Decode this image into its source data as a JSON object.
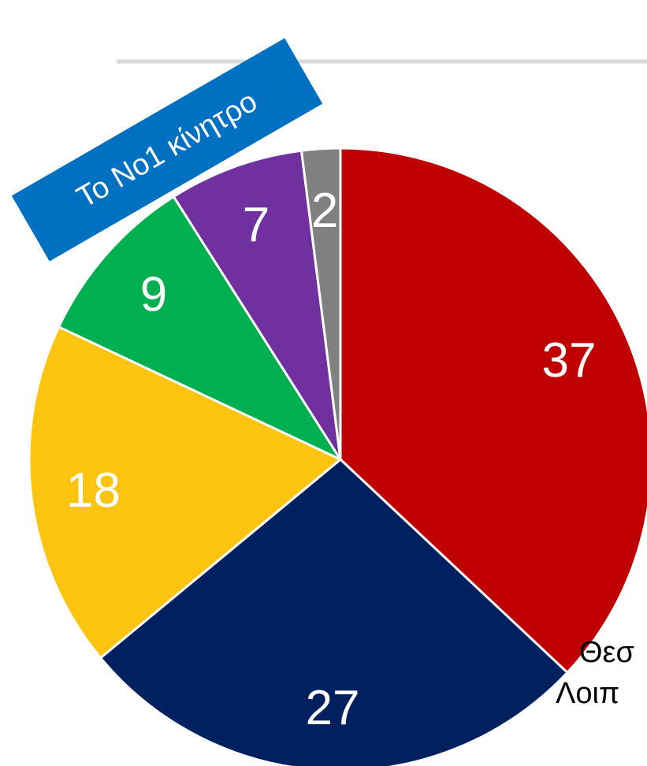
{
  "chart_data": {
    "type": "pie",
    "values": [
      37,
      27,
      18,
      9,
      7,
      2
    ],
    "colors": [
      "#c00000",
      "#002060",
      "#fcc30f",
      "#00b050",
      "#7030a0",
      "#808080"
    ],
    "annotations": [
      "Το Νο1 κίνητρο",
      "Θεσ",
      "Λοιπ"
    ]
  }
}
